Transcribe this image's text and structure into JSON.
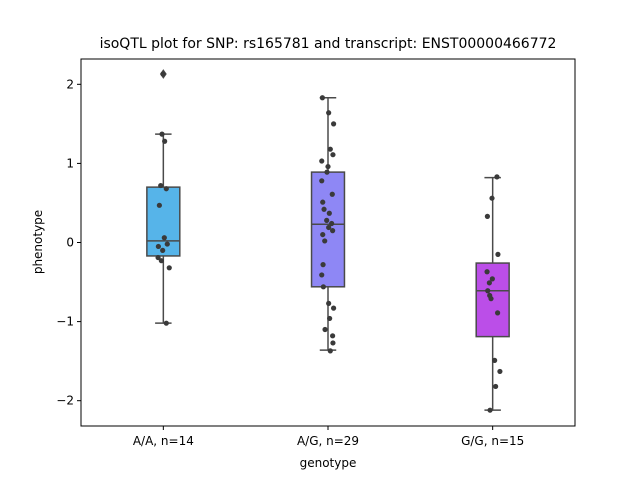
{
  "chart_data": {
    "type": "box",
    "title": "isoQTL plot for SNP: rs165781 and transcript: ENST00000466772",
    "xlabel": "genotype",
    "ylabel": "phenotype",
    "ylim": [
      -2.32,
      2.32
    ],
    "yticks": [
      -2,
      -1,
      0,
      1,
      2
    ],
    "ytick_labels": [
      "−2",
      "−1",
      "0",
      "1",
      "2"
    ],
    "grid": false,
    "categories": [
      "A/A, n=14",
      "A/G, n=29",
      "G/G, n=15"
    ],
    "boxes": [
      {
        "category": "A/A, n=14",
        "color": "#56b4e9",
        "q1": -0.17,
        "median": 0.02,
        "q3": 0.7,
        "whisker_low": -1.02,
        "whisker_high": 1.37,
        "outliers": [
          2.13
        ],
        "points": [
          {
            "x": -0.04,
            "y": 1.37
          },
          {
            "x": 0.04,
            "y": 1.28
          },
          {
            "x": -0.08,
            "y": 0.72
          },
          {
            "x": 0.09,
            "y": 0.68
          },
          {
            "x": -0.12,
            "y": 0.47
          },
          {
            "x": 0.03,
            "y": 0.06
          },
          {
            "x": -0.15,
            "y": -0.05
          },
          {
            "x": 0.12,
            "y": -0.02
          },
          {
            "x": -0.02,
            "y": -0.1
          },
          {
            "x": -0.16,
            "y": -0.19
          },
          {
            "x": -0.06,
            "y": -0.23
          },
          {
            "x": 0.18,
            "y": -0.32
          },
          {
            "x": 0.09,
            "y": -1.02
          },
          {
            "x": -0.01,
            "y": 2.13
          }
        ]
      },
      {
        "category": "A/G, n=29",
        "color": "#8e87f5",
        "q1": -0.56,
        "median": 0.23,
        "q3": 0.89,
        "whisker_low": -1.36,
        "whisker_high": 1.83,
        "outliers": [],
        "points": [
          {
            "x": -0.17,
            "y": 1.83
          },
          {
            "x": 0.02,
            "y": 1.64
          },
          {
            "x": 0.17,
            "y": 1.5
          },
          {
            "x": 0.07,
            "y": 1.18
          },
          {
            "x": 0.15,
            "y": 1.11
          },
          {
            "x": -0.19,
            "y": 1.03
          },
          {
            "x": 0.0,
            "y": 0.96
          },
          {
            "x": -0.03,
            "y": 0.89
          },
          {
            "x": -0.19,
            "y": 0.78
          },
          {
            "x": 0.13,
            "y": 0.61
          },
          {
            "x": -0.16,
            "y": 0.51
          },
          {
            "x": -0.12,
            "y": 0.42
          },
          {
            "x": 0.04,
            "y": 0.37
          },
          {
            "x": -0.04,
            "y": 0.28
          },
          {
            "x": 0.11,
            "y": 0.24
          },
          {
            "x": 0.02,
            "y": 0.19
          },
          {
            "x": 0.14,
            "y": 0.15
          },
          {
            "x": -0.16,
            "y": 0.1
          },
          {
            "x": -0.1,
            "y": 0.02
          },
          {
            "x": -0.15,
            "y": -0.28
          },
          {
            "x": -0.19,
            "y": -0.41
          },
          {
            "x": -0.14,
            "y": -0.56
          },
          {
            "x": 0.02,
            "y": -0.77
          },
          {
            "x": 0.17,
            "y": -0.83
          },
          {
            "x": 0.05,
            "y": -0.96
          },
          {
            "x": -0.09,
            "y": -1.1
          },
          {
            "x": 0.14,
            "y": -1.18
          },
          {
            "x": 0.15,
            "y": -1.27
          },
          {
            "x": 0.07,
            "y": -1.37
          }
        ]
      },
      {
        "category": "G/G, n=15",
        "color": "#bb4ee8",
        "q1": -1.19,
        "median": -0.61,
        "q3": -0.26,
        "whisker_low": -2.12,
        "whisker_high": 0.82,
        "outliers": [],
        "points": [
          {
            "x": 0.13,
            "y": 0.83
          },
          {
            "x": -0.02,
            "y": 0.56
          },
          {
            "x": -0.16,
            "y": 0.33
          },
          {
            "x": 0.16,
            "y": -0.15
          },
          {
            "x": -0.17,
            "y": -0.37
          },
          {
            "x": -0.01,
            "y": -0.46
          },
          {
            "x": -0.1,
            "y": -0.51
          },
          {
            "x": -0.15,
            "y": -0.61
          },
          {
            "x": -0.09,
            "y": -0.67
          },
          {
            "x": -0.05,
            "y": -0.71
          },
          {
            "x": 0.15,
            "y": -0.89
          },
          {
            "x": 0.06,
            "y": -1.49
          },
          {
            "x": 0.22,
            "y": -1.63
          },
          {
            "x": 0.09,
            "y": -1.82
          },
          {
            "x": -0.08,
            "y": -2.12
          }
        ]
      }
    ]
  }
}
